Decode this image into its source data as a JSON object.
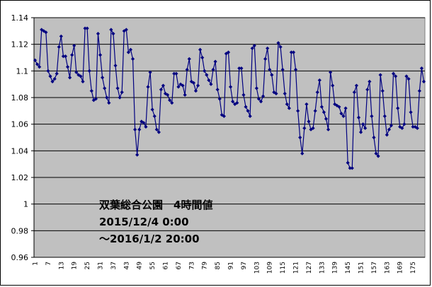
{
  "chart_data": {
    "type": "line",
    "annotations": [
      "双葉総合公園　4時間値",
      "2015/12/4 0:00",
      "～2016/1/2 20:00"
    ],
    "categories": [
      "1",
      null,
      null,
      null,
      null,
      null,
      "7",
      null,
      null,
      null,
      null,
      null,
      "13",
      null,
      null,
      null,
      null,
      null,
      "19",
      null,
      null,
      null,
      null,
      null,
      "25",
      null,
      null,
      null,
      null,
      null,
      "31",
      null,
      null,
      null,
      null,
      null,
      "37",
      null,
      null,
      null,
      null,
      null,
      "43",
      null,
      null,
      null,
      null,
      null,
      "49",
      null,
      null,
      null,
      null,
      null,
      "55",
      null,
      null,
      null,
      null,
      null,
      "61",
      null,
      null,
      null,
      null,
      null,
      "67",
      null,
      null,
      null,
      null,
      null,
      "73",
      null,
      null,
      null,
      null,
      null,
      "79",
      null,
      null,
      null,
      null,
      null,
      "85",
      null,
      null,
      null,
      null,
      null,
      "91",
      null,
      null,
      null,
      null,
      null,
      "97",
      null,
      null,
      null,
      null,
      null,
      "103",
      null,
      null,
      null,
      null,
      null,
      "109",
      null,
      null,
      null,
      null,
      null,
      "115",
      null,
      null,
      null,
      null,
      null,
      "121",
      null,
      null,
      null,
      null,
      null,
      "127",
      null,
      null,
      null,
      null,
      null,
      "133",
      null,
      null,
      null,
      null,
      null,
      "139",
      null,
      null,
      null,
      null,
      null,
      "145",
      null,
      null,
      null,
      null,
      null,
      "151",
      null,
      null,
      null,
      null,
      null,
      "157",
      null,
      null,
      null,
      null,
      null,
      "163",
      null,
      null,
      null,
      null,
      null,
      "169",
      null,
      null,
      null,
      null,
      null,
      "175",
      null,
      null,
      null,
      null,
      null
    ],
    "series": [
      {
        "color": "#000080",
        "values": [
          1.108,
          1.105,
          1.103,
          1.131,
          1.13,
          1.129,
          1.1,
          1.096,
          1.092,
          1.094,
          1.098,
          1.118,
          1.126,
          1.111,
          1.111,
          1.103,
          1.095,
          1.112,
          1.119,
          1.099,
          1.097,
          1.096,
          1.092,
          1.132,
          1.132,
          1.1,
          1.085,
          1.078,
          1.079,
          1.128,
          1.112,
          1.095,
          1.087,
          1.08,
          1.076,
          1.131,
          1.128,
          1.104,
          1.087,
          1.08,
          1.084,
          1.13,
          1.131,
          1.114,
          1.116,
          1.109,
          1.056,
          1.037,
          1.056,
          1.062,
          1.061,
          1.058,
          1.088,
          1.099,
          1.071,
          1.066,
          1.056,
          1.054,
          1.086,
          1.089,
          1.083,
          1.082,
          1.078,
          1.076,
          1.098,
          1.098,
          1.088,
          1.09,
          1.089,
          1.082,
          1.101,
          1.109,
          1.092,
          1.091,
          1.085,
          1.089,
          1.116,
          1.11,
          1.1,
          1.097,
          1.093,
          1.09,
          1.101,
          1.107,
          1.086,
          1.079,
          1.067,
          1.066,
          1.113,
          1.114,
          1.088,
          1.077,
          1.075,
          1.076,
          1.102,
          1.102,
          1.082,
          1.073,
          1.07,
          1.066,
          1.117,
          1.119,
          1.087,
          1.079,
          1.077,
          1.081,
          1.109,
          1.117,
          1.101,
          1.097,
          1.084,
          1.083,
          1.121,
          1.118,
          1.101,
          1.083,
          1.075,
          1.072,
          1.114,
          1.114,
          1.101,
          1.07,
          1.05,
          1.038,
          1.057,
          1.075,
          1.062,
          1.056,
          1.057,
          1.07,
          1.084,
          1.093,
          1.073,
          1.069,
          1.064,
          1.056,
          1.099,
          1.089,
          1.075,
          1.074,
          1.073,
          1.068,
          1.066,
          1.072,
          1.031,
          1.027,
          1.027,
          1.084,
          1.089,
          1.065,
          1.054,
          1.06,
          1.057,
          1.086,
          1.092,
          1.066,
          1.05,
          1.038,
          1.036,
          1.097,
          1.085,
          1.066,
          1.052,
          1.056,
          1.059,
          1.098,
          1.096,
          1.072,
          1.058,
          1.057,
          1.06,
          1.096,
          1.094,
          1.069,
          1.058,
          1.058,
          1.057,
          1.085,
          1.102,
          1.092
        ]
      }
    ],
    "ylim": [
      0.96,
      1.14
    ],
    "yticks": [
      0.96,
      0.98,
      1,
      1.02,
      1.04,
      1.06,
      1.08,
      1.1,
      1.12,
      1.14
    ],
    "grid": true,
    "background": "#c0c0c0"
  }
}
